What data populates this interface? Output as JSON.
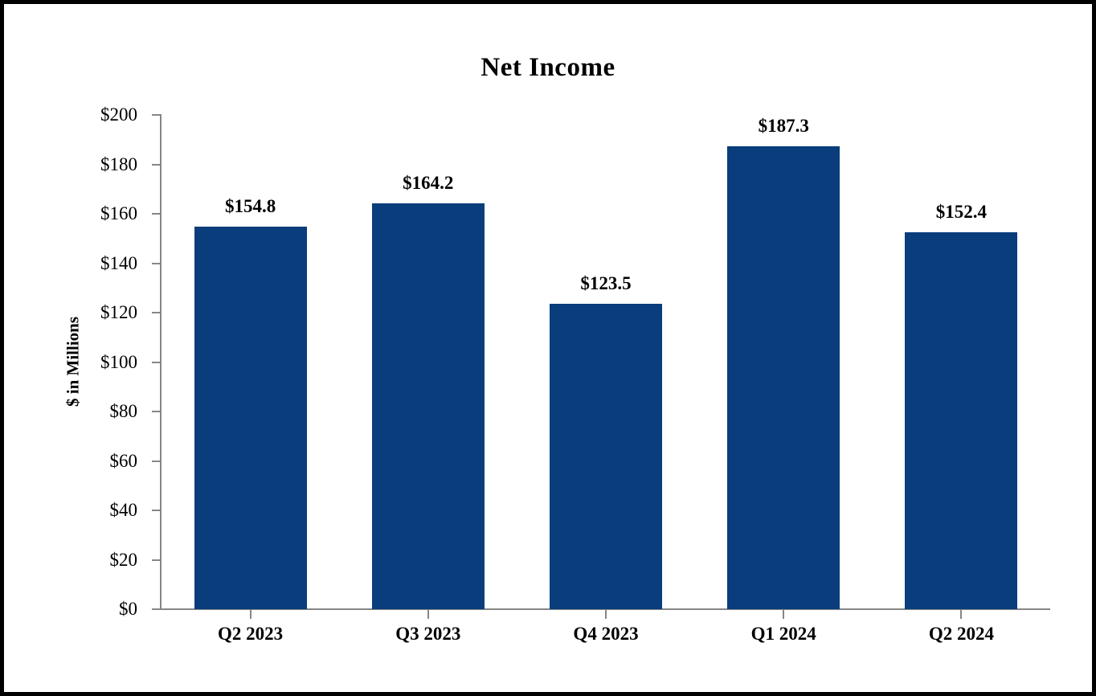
{
  "page": {
    "background_color": "#ffffff",
    "frame_border_color": "#000000"
  },
  "chart_data": {
    "type": "bar",
    "title": "Net Income",
    "ylabel": "$ in Millions",
    "xlabel": "",
    "categories": [
      "Q2 2023",
      "Q3 2023",
      "Q4 2023",
      "Q1 2024",
      "Q2 2024"
    ],
    "values": [
      154.8,
      164.2,
      123.5,
      187.3,
      152.4
    ],
    "bar_labels": [
      "$154.8",
      "$164.2",
      "$123.5",
      "$187.3",
      "$152.4"
    ],
    "y_ticks": [
      {
        "value": 0,
        "label": "$0"
      },
      {
        "value": 20,
        "label": "$20"
      },
      {
        "value": 40,
        "label": "$40"
      },
      {
        "value": 60,
        "label": "$60"
      },
      {
        "value": 80,
        "label": "$80"
      },
      {
        "value": 100,
        "label": "$100"
      },
      {
        "value": 120,
        "label": "$120"
      },
      {
        "value": 140,
        "label": "$140"
      },
      {
        "value": 160,
        "label": "$160"
      },
      {
        "value": 180,
        "label": "$180"
      },
      {
        "value": 200,
        "label": "$200"
      }
    ],
    "ylim": [
      0,
      200
    ],
    "grid": false,
    "legend": "none",
    "bar_color": "#093d7c",
    "axis_color": "#868686",
    "text_color": "#000000"
  }
}
